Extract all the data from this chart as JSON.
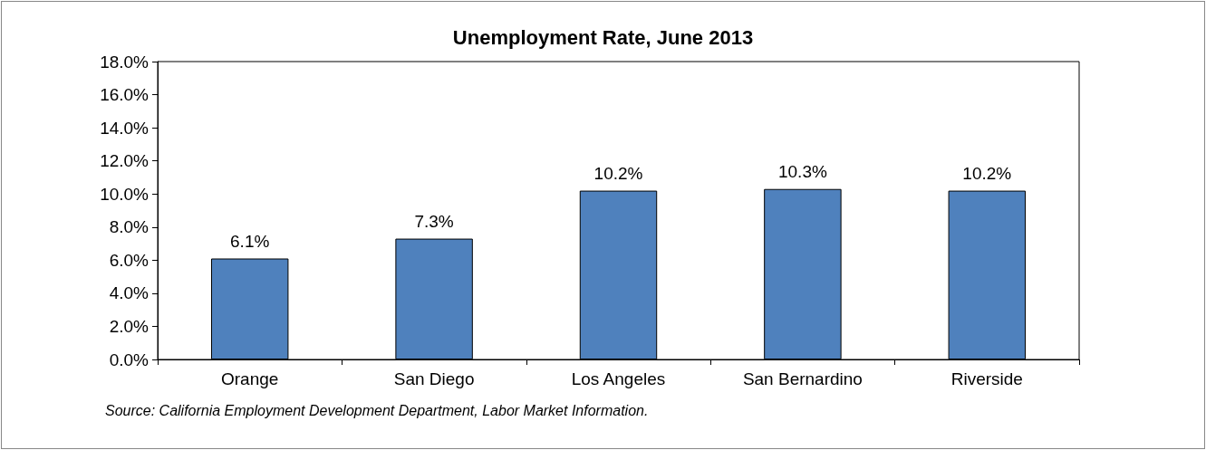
{
  "chart_data": {
    "type": "bar",
    "title": "Unemployment Rate, June 2013",
    "categories": [
      "Orange",
      "San Diego",
      "Los Angeles",
      "San Bernardino",
      "Riverside"
    ],
    "values": [
      6.1,
      7.3,
      10.2,
      10.3,
      10.2
    ],
    "value_labels": [
      "6.1%",
      "7.3%",
      "10.2%",
      "10.3%",
      "10.2%"
    ],
    "color": "#4f81bd",
    "ylim": [
      0,
      18
    ],
    "yticks": [
      {
        "value": 0,
        "label": "0.0%"
      },
      {
        "value": 2,
        "label": "2.0%"
      },
      {
        "value": 4,
        "label": "4.0%"
      },
      {
        "value": 6,
        "label": "6.0%"
      },
      {
        "value": 8,
        "label": "8.0%"
      },
      {
        "value": 10,
        "label": "10.0%"
      },
      {
        "value": 12,
        "label": "12.0%"
      },
      {
        "value": 14,
        "label": "14.0%"
      },
      {
        "value": 16,
        "label": "16.0%"
      },
      {
        "value": 18,
        "label": "18.0%"
      }
    ],
    "grid": false,
    "annotations": [
      "Source: California Employment Development Department, Labor Market Information."
    ]
  }
}
